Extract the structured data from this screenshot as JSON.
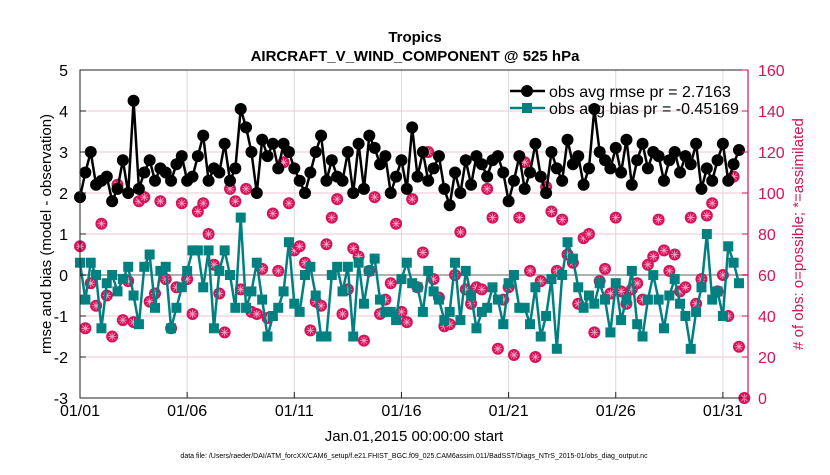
{
  "chart_data": {
    "type": "line",
    "title": "Tropics",
    "subtitle": "AIRCRAFT_V_WIND_COMPONENT @ 525 hPa",
    "xlabel": "Jan.01,2015 00:00:00 start",
    "ylabel": "rmse and bias (model - observation)",
    "ylabel_right": "# of obs: o=possible; *=assimilated",
    "footer": "data file: /Users/raeder/DAI/ATM_forcXX/CAM6_setup/f.e21.FHIST_BGC.f09_025.CAM6assim.011/BadSST/Diags_NTrS_2015-01/obs_diag_output.nc",
    "xlim_days": [
      0,
      31.2
    ],
    "ylim": [
      -3,
      5
    ],
    "ylim_right": [
      0,
      160
    ],
    "x_ticks": [
      {
        "day": 0,
        "label": "01/01"
      },
      {
        "day": 5,
        "label": "01/06"
      },
      {
        "day": 10,
        "label": "01/11"
      },
      {
        "day": 15,
        "label": "01/16"
      },
      {
        "day": 20,
        "label": "01/21"
      },
      {
        "day": 25,
        "label": "01/26"
      },
      {
        "day": 30,
        "label": "01/31"
      }
    ],
    "y_ticks": [
      "-3",
      "-2",
      "-1",
      "0",
      "1",
      "2",
      "3",
      "4",
      "5"
    ],
    "y_ticks_right": [
      "0",
      "20",
      "40",
      "60",
      "80",
      "100",
      "120",
      "140",
      "160"
    ],
    "time_step_days": 0.25,
    "legend_position": "top-right",
    "colors": {
      "rmse": "#000000",
      "bias": "#008080",
      "obs": "#d6125a",
      "zero": "#b0b0b0"
    },
    "series": [
      {
        "name": "obs avg rmse pr = 2.7163",
        "marker": "circle",
        "values": [
          1.9,
          2.5,
          3.0,
          2.2,
          2.3,
          2.4,
          1.8,
          2.1,
          2.8,
          2.0,
          4.25,
          2.1,
          2.5,
          2.8,
          2.3,
          2.6,
          2.5,
          2.3,
          2.7,
          2.9,
          2.3,
          2.4,
          2.9,
          3.4,
          2.3,
          2.6,
          2.5,
          3.2,
          2.3,
          2.6,
          4.05,
          3.6,
          3.0,
          2.0,
          3.3,
          2.9,
          3.2,
          2.6,
          3.2,
          3.0,
          2.6,
          2.3,
          2.0,
          2.5,
          3.0,
          3.4,
          2.3,
          2.8,
          2.4,
          2.3,
          3.0,
          2.0,
          3.2,
          2.1,
          3.4,
          3.1,
          2.7,
          2.9,
          2.0,
          2.4,
          2.8,
          2.1,
          3.6,
          2.4,
          3.0,
          2.3,
          2.6,
          2.9,
          2.1,
          1.7,
          2.5,
          2.0,
          2.8,
          2.2,
          2.9,
          2.7,
          2.4,
          2.8,
          2.9,
          2.5,
          1.8,
          2.3,
          2.9,
          2.1,
          2.5,
          3.2,
          2.4,
          2.0,
          3.0,
          2.6,
          2.3,
          3.3,
          2.7,
          2.9,
          2.2,
          2.6,
          4.05,
          3.0,
          2.8,
          2.6,
          3.1,
          2.5,
          3.3,
          2.2,
          2.8,
          3.2,
          2.6,
          3.0,
          2.9,
          2.3,
          2.8,
          3.0,
          2.5,
          2.9,
          2.7,
          3.2,
          2.1,
          2.6,
          2.3,
          2.8,
          3.2,
          2.3,
          2.7,
          3.05
        ]
      },
      {
        "name": "obs avg bias pr = -0.45169",
        "marker": "square",
        "values": [
          0.3,
          -0.6,
          0.3,
          0.0,
          -1.3,
          -0.2,
          0.0,
          -0.4,
          -0.1,
          0.2,
          -0.5,
          -1.2,
          0.2,
          0.5,
          -0.8,
          0.1,
          0.2,
          -1.3,
          -0.8,
          -0.3,
          0.1,
          0.6,
          0.6,
          -0.3,
          0.6,
          -1.3,
          0.1,
          0.6,
          0.0,
          -0.8,
          1.4,
          -0.8,
          -0.4,
          0.3,
          -0.6,
          -1.5,
          -1.0,
          -0.8,
          -0.4,
          0.8,
          -0.7,
          -0.9,
          0.0,
          0.2,
          -0.5,
          -1.5,
          -1.5,
          0.0,
          0.2,
          -0.4,
          0.2,
          -1.5,
          0.3,
          -0.7,
          0.1,
          0.4,
          -0.6,
          -0.9,
          -0.9,
          -1.1,
          -0.1,
          0.3,
          -0.2,
          -0.3,
          -0.9,
          0.1,
          -0.4,
          -0.6,
          -1.1,
          -0.9,
          0.3,
          -1.1,
          0.1,
          -0.5,
          -1.3,
          -0.9,
          -0.8,
          -0.3,
          -0.6,
          -1.2,
          -0.2,
          0.0,
          -0.8,
          -0.8,
          -1.2,
          -0.3,
          -1.5,
          -1.0,
          -0.1,
          -1.8,
          0.0,
          0.8,
          0.4,
          -0.3,
          -0.8,
          -0.5,
          -0.7,
          -0.2,
          -0.6,
          -1.4,
          -0.2,
          -1.1,
          -0.6,
          0.1,
          -1.2,
          -1.5,
          -0.6,
          0.0,
          -0.6,
          -1.3,
          -0.5,
          -0.1,
          -0.7,
          -1.0,
          -1.8,
          -0.9,
          -0.3,
          1.0,
          -0.6,
          -0.4,
          -1.0,
          0.7,
          0.3,
          -0.2
        ]
      },
      {
        "name": "# of obs",
        "axis": "right",
        "marker": "circle-asterisk",
        "values": [
          74,
          34,
          56,
          45,
          85,
          50,
          30,
          104,
          38,
          57,
          37,
          96,
          98,
          47,
          51,
          96,
          58,
          34,
          54,
          95,
          58,
          41,
          91,
          95,
          80,
          65,
          51,
          32,
          102,
          96,
          53,
          102,
          42,
          41,
          63,
          39,
          90,
          62,
          115,
          95,
          72,
          74,
          66,
          33,
          47,
          45,
          75,
          88,
          97,
          41,
          53,
          73,
          69,
          28,
          62,
          98,
          41,
          48,
          56,
          85,
          42,
          37,
          97,
          54,
          71,
          120,
          58,
          49,
          35,
          36,
          60,
          81,
          53,
          46,
          54,
          53,
          102,
          88,
          24,
          48,
          54,
          21,
          88,
          115,
          62,
          20,
          57,
          103,
          91,
          62,
          87,
          70,
          66,
          46,
          78,
          80,
          32,
          57,
          63,
          51,
          88,
          52,
          46,
          53,
          56,
          48,
          65,
          69,
          87,
          72,
          62,
          70,
          52,
          54,
          88,
          46,
          58,
          89,
          95,
          52,
          60,
          40,
          108,
          25,
          0
        ]
      }
    ]
  }
}
